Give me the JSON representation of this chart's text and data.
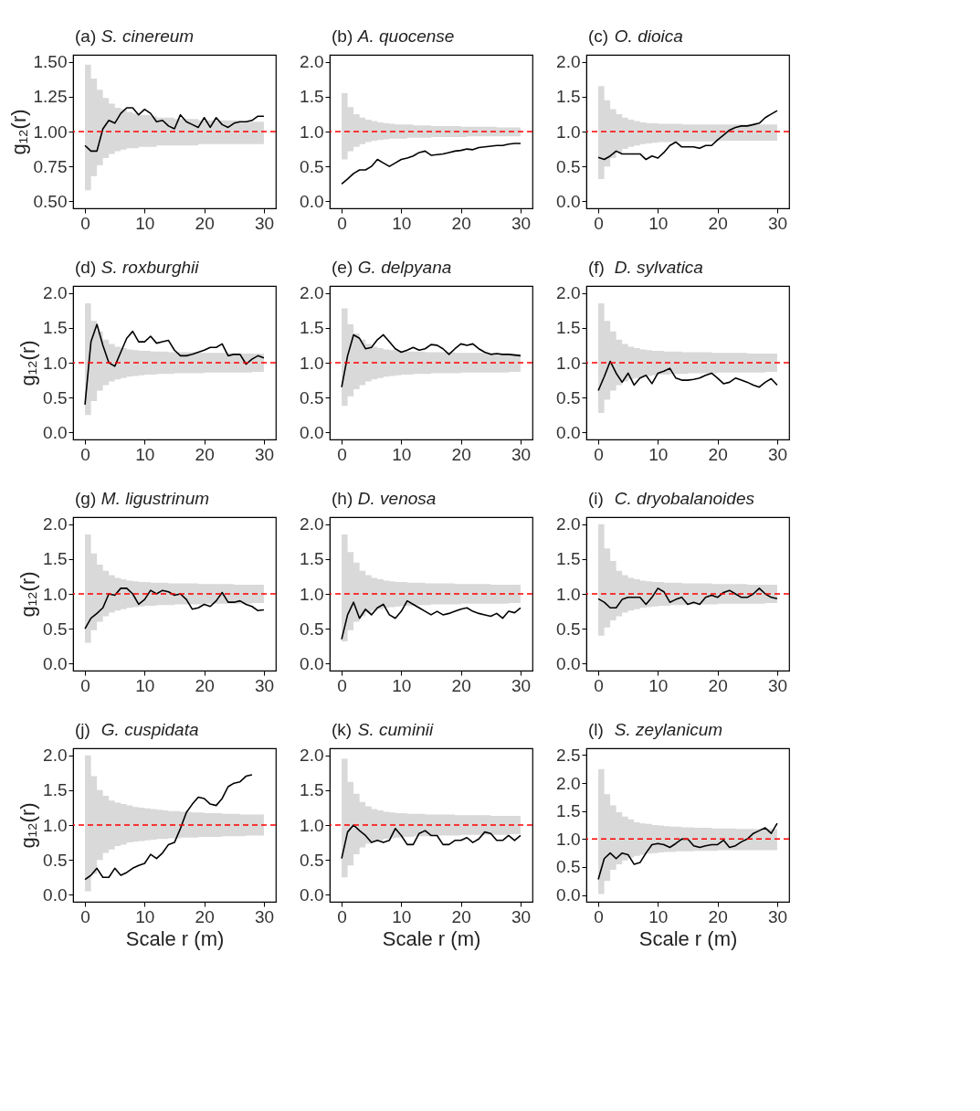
{
  "chart_data": [
    {
      "type": "line",
      "title": "(a) S. cinereum",
      "ylabel": "g₁₂(r)",
      "x": [
        0,
        1,
        2,
        3,
        4,
        5,
        6,
        7,
        8,
        9,
        10,
        11,
        12,
        13,
        14,
        15,
        16,
        17,
        18,
        19,
        20,
        21,
        22,
        23,
        24,
        25,
        26,
        27,
        28,
        29,
        30
      ],
      "xlim": [
        -2,
        32
      ],
      "xticks": [
        0,
        10,
        20,
        30
      ],
      "ylim": [
        0.45,
        1.55
      ],
      "yticks": [
        {
          "value": 0.5,
          "label": "0.50"
        },
        0.75,
        {
          "value": 1,
          "label": "1.00"
        },
        1.25,
        {
          "value": 1.5,
          "label": "1.50"
        }
      ],
      "ref_lines": [
        {
          "axis": "y",
          "value": 1,
          "color": "#ff0000",
          "line_style": "dashed"
        }
      ],
      "series": [
        {
          "color": "#000000",
          "values": [
            0.9,
            0.86,
            0.86,
            1.02,
            1.08,
            1.06,
            1.13,
            1.17,
            1.17,
            1.12,
            1.16,
            1.13,
            1.07,
            1.08,
            1.04,
            1.02,
            1.12,
            1.07,
            1.05,
            1.03,
            1.1,
            1.03,
            1.1,
            1.05,
            1.03,
            1.06,
            1.07,
            1.07,
            1.08,
            1.11,
            1.11
          ],
          "lower": [
            0.58,
            0.68,
            0.76,
            0.81,
            0.84,
            0.86,
            0.87,
            0.88,
            0.88,
            0.89,
            0.89,
            0.89,
            0.9,
            0.9,
            0.9,
            0.9,
            0.9,
            0.9,
            0.9,
            0.91,
            0.91,
            0.91,
            0.91,
            0.91,
            0.91,
            0.91,
            0.91,
            0.91,
            0.91,
            0.91,
            0.91
          ],
          "upper": [
            1.48,
            1.38,
            1.3,
            1.24,
            1.2,
            1.17,
            1.16,
            1.14,
            1.13,
            1.12,
            1.12,
            1.11,
            1.1,
            1.1,
            1.1,
            1.09,
            1.09,
            1.09,
            1.09,
            1.08,
            1.08,
            1.08,
            1.08,
            1.08,
            1.08,
            1.08,
            1.07,
            1.07,
            1.07,
            1.07,
            1.07
          ]
        }
      ]
    },
    {
      "type": "line",
      "title": "(b) A. quocense",
      "x": [
        0,
        1,
        2,
        3,
        4,
        5,
        6,
        7,
        8,
        9,
        10,
        11,
        12,
        13,
        14,
        15,
        16,
        17,
        18,
        19,
        20,
        21,
        22,
        23,
        24,
        25,
        26,
        27,
        28,
        29,
        30
      ],
      "xlim": [
        -2,
        32
      ],
      "xticks": [
        0,
        10,
        20,
        30
      ],
      "ylim": [
        -0.1,
        2.1
      ],
      "yticks": [
        {
          "value": 0,
          "label": "0.0"
        },
        0.5,
        {
          "value": 1,
          "label": "1.0"
        },
        1.5,
        {
          "value": 2,
          "label": "2.0"
        }
      ],
      "ref_lines": [
        {
          "axis": "y",
          "value": 1,
          "color": "#ff0000",
          "line_style": "dashed"
        }
      ],
      "series": [
        {
          "color": "#000000",
          "values": [
            0.25,
            0.32,
            0.4,
            0.45,
            0.45,
            0.5,
            0.6,
            0.55,
            0.5,
            0.55,
            0.6,
            0.62,
            0.65,
            0.7,
            0.72,
            0.66,
            0.67,
            0.68,
            0.7,
            0.72,
            0.73,
            0.75,
            0.74,
            0.77,
            0.78,
            0.79,
            0.8,
            0.8,
            0.82,
            0.83,
            0.83
          ],
          "lower": [
            0.6,
            0.72,
            0.78,
            0.82,
            0.85,
            0.87,
            0.88,
            0.89,
            0.9,
            0.9,
            0.9,
            0.91,
            0.91,
            0.91,
            0.91,
            0.92,
            0.92,
            0.92,
            0.92,
            0.92,
            0.92,
            0.93,
            0.93,
            0.93,
            0.93,
            0.93,
            0.93,
            0.93,
            0.93,
            0.93,
            0.93
          ],
          "upper": [
            1.55,
            1.35,
            1.25,
            1.2,
            1.17,
            1.15,
            1.13,
            1.12,
            1.11,
            1.1,
            1.1,
            1.1,
            1.09,
            1.09,
            1.09,
            1.08,
            1.08,
            1.08,
            1.08,
            1.08,
            1.07,
            1.07,
            1.07,
            1.07,
            1.07,
            1.07,
            1.06,
            1.06,
            1.06,
            1.06,
            1.06
          ]
        }
      ]
    },
    {
      "type": "line",
      "title": "(c) O. dioica",
      "x": [
        0,
        1,
        2,
        3,
        4,
        5,
        6,
        7,
        8,
        9,
        10,
        11,
        12,
        13,
        14,
        15,
        16,
        17,
        18,
        19,
        20,
        21,
        22,
        23,
        24,
        25,
        26,
        27,
        28,
        29,
        30
      ],
      "xlim": [
        -2,
        32
      ],
      "xticks": [
        0,
        10,
        20,
        30
      ],
      "ylim": [
        -0.1,
        2.1
      ],
      "yticks": [
        {
          "value": 0,
          "label": "0.0"
        },
        0.5,
        {
          "value": 1,
          "label": "1.0"
        },
        1.5,
        {
          "value": 2,
          "label": "2.0"
        }
      ],
      "ref_lines": [
        {
          "axis": "y",
          "value": 1,
          "color": "#ff0000",
          "line_style": "dashed"
        }
      ],
      "series": [
        {
          "color": "#000000",
          "values": [
            0.63,
            0.6,
            0.65,
            0.72,
            0.68,
            0.68,
            0.68,
            0.68,
            0.6,
            0.65,
            0.62,
            0.7,
            0.8,
            0.85,
            0.78,
            0.78,
            0.78,
            0.76,
            0.8,
            0.8,
            0.88,
            0.95,
            1.02,
            1.06,
            1.08,
            1.08,
            1.1,
            1.12,
            1.2,
            1.25,
            1.3
          ],
          "lower": [
            0.32,
            0.5,
            0.62,
            0.7,
            0.75,
            0.78,
            0.8,
            0.82,
            0.83,
            0.84,
            0.85,
            0.85,
            0.85,
            0.86,
            0.86,
            0.86,
            0.86,
            0.86,
            0.86,
            0.86,
            0.87,
            0.87,
            0.87,
            0.87,
            0.87,
            0.87,
            0.87,
            0.87,
            0.87,
            0.87,
            0.87
          ],
          "upper": [
            1.65,
            1.45,
            1.32,
            1.25,
            1.2,
            1.17,
            1.15,
            1.13,
            1.12,
            1.12,
            1.11,
            1.11,
            1.11,
            1.11,
            1.1,
            1.1,
            1.1,
            1.1,
            1.1,
            1.1,
            1.1,
            1.1,
            1.1,
            1.1,
            1.1,
            1.1,
            1.1,
            1.1,
            1.1,
            1.1,
            1.1
          ]
        }
      ]
    },
    {
      "type": "line",
      "title": "(d) S. roxburghii",
      "ylabel": "g₁₂(r)",
      "x": [
        0,
        1,
        2,
        3,
        4,
        5,
        6,
        7,
        8,
        9,
        10,
        11,
        12,
        13,
        14,
        15,
        16,
        17,
        18,
        19,
        20,
        21,
        22,
        23,
        24,
        25,
        26,
        27,
        28,
        29,
        30
      ],
      "xlim": [
        -2,
        32
      ],
      "xticks": [
        0,
        10,
        20,
        30
      ],
      "ylim": [
        -0.1,
        2.1
      ],
      "yticks": [
        {
          "value": 0,
          "label": "0.0"
        },
        0.5,
        {
          "value": 1,
          "label": "1.0"
        },
        1.5,
        {
          "value": 2,
          "label": "2.0"
        }
      ],
      "ref_lines": [
        {
          "axis": "y",
          "value": 1,
          "color": "#ff0000",
          "line_style": "dashed"
        }
      ],
      "series": [
        {
          "color": "#000000",
          "values": [
            0.4,
            1.3,
            1.55,
            1.25,
            1.0,
            0.95,
            1.15,
            1.35,
            1.45,
            1.3,
            1.3,
            1.38,
            1.28,
            1.3,
            1.32,
            1.18,
            1.1,
            1.1,
            1.12,
            1.15,
            1.18,
            1.22,
            1.22,
            1.27,
            1.1,
            1.12,
            1.12,
            0.98,
            1.05,
            1.1,
            1.07
          ],
          "lower": [
            0.25,
            0.45,
            0.6,
            0.68,
            0.73,
            0.76,
            0.78,
            0.8,
            0.81,
            0.82,
            0.83,
            0.83,
            0.84,
            0.84,
            0.84,
            0.85,
            0.85,
            0.85,
            0.85,
            0.85,
            0.86,
            0.86,
            0.86,
            0.86,
            0.86,
            0.86,
            0.86,
            0.86,
            0.87,
            0.87,
            0.87
          ],
          "upper": [
            1.85,
            1.6,
            1.45,
            1.33,
            1.27,
            1.23,
            1.21,
            1.19,
            1.18,
            1.17,
            1.17,
            1.16,
            1.16,
            1.16,
            1.15,
            1.15,
            1.15,
            1.15,
            1.15,
            1.14,
            1.14,
            1.14,
            1.14,
            1.14,
            1.14,
            1.13,
            1.13,
            1.13,
            1.13,
            1.13,
            1.13
          ]
        }
      ]
    },
    {
      "type": "line",
      "title": "(e) G. delpyana",
      "x": [
        0,
        1,
        2,
        3,
        4,
        5,
        6,
        7,
        8,
        9,
        10,
        11,
        12,
        13,
        14,
        15,
        16,
        17,
        18,
        19,
        20,
        21,
        22,
        23,
        24,
        25,
        26,
        27,
        28,
        29,
        30
      ],
      "xlim": [
        -2,
        32
      ],
      "xticks": [
        0,
        10,
        20,
        30
      ],
      "ylim": [
        -0.1,
        2.1
      ],
      "yticks": [
        {
          "value": 0,
          "label": "0.0"
        },
        0.5,
        {
          "value": 1,
          "label": "1.0"
        },
        1.5,
        {
          "value": 2,
          "label": "2.0"
        }
      ],
      "ref_lines": [
        {
          "axis": "y",
          "value": 1,
          "color": "#ff0000",
          "line_style": "dashed"
        }
      ],
      "series": [
        {
          "color": "#000000",
          "values": [
            0.65,
            1.1,
            1.4,
            1.35,
            1.2,
            1.22,
            1.33,
            1.4,
            1.3,
            1.2,
            1.15,
            1.18,
            1.22,
            1.18,
            1.2,
            1.26,
            1.25,
            1.2,
            1.12,
            1.2,
            1.27,
            1.25,
            1.27,
            1.2,
            1.15,
            1.12,
            1.13,
            1.12,
            1.12,
            1.11,
            1.1
          ],
          "lower": [
            0.38,
            0.52,
            0.62,
            0.68,
            0.73,
            0.76,
            0.78,
            0.8,
            0.81,
            0.82,
            0.83,
            0.83,
            0.84,
            0.84,
            0.84,
            0.85,
            0.85,
            0.85,
            0.85,
            0.85,
            0.86,
            0.86,
            0.86,
            0.86,
            0.86,
            0.86,
            0.86,
            0.86,
            0.87,
            0.87,
            0.87
          ],
          "upper": [
            1.78,
            1.55,
            1.42,
            1.33,
            1.27,
            1.23,
            1.21,
            1.19,
            1.18,
            1.17,
            1.17,
            1.16,
            1.16,
            1.16,
            1.15,
            1.15,
            1.15,
            1.15,
            1.15,
            1.14,
            1.14,
            1.14,
            1.14,
            1.14,
            1.14,
            1.13,
            1.13,
            1.13,
            1.13,
            1.13,
            1.13
          ]
        }
      ]
    },
    {
      "type": "line",
      "title": "(f) D. sylvatica",
      "x": [
        0,
        1,
        2,
        3,
        4,
        5,
        6,
        7,
        8,
        9,
        10,
        11,
        12,
        13,
        14,
        15,
        16,
        17,
        18,
        19,
        20,
        21,
        22,
        23,
        24,
        25,
        26,
        27,
        28,
        29,
        30
      ],
      "xlim": [
        -2,
        32
      ],
      "xticks": [
        0,
        10,
        20,
        30
      ],
      "ylim": [
        -0.1,
        2.1
      ],
      "yticks": [
        {
          "value": 0,
          "label": "0.0"
        },
        0.5,
        {
          "value": 1,
          "label": "1.0"
        },
        1.5,
        {
          "value": 2,
          "label": "2.0"
        }
      ],
      "ref_lines": [
        {
          "axis": "y",
          "value": 1,
          "color": "#ff0000",
          "line_style": "dashed"
        }
      ],
      "series": [
        {
          "color": "#000000",
          "values": [
            0.6,
            0.8,
            1.02,
            0.85,
            0.72,
            0.85,
            0.68,
            0.78,
            0.82,
            0.7,
            0.85,
            0.88,
            0.92,
            0.78,
            0.75,
            0.75,
            0.76,
            0.78,
            0.82,
            0.85,
            0.78,
            0.7,
            0.72,
            0.78,
            0.75,
            0.72,
            0.68,
            0.65,
            0.72,
            0.77,
            0.68
          ],
          "lower": [
            0.28,
            0.47,
            0.6,
            0.68,
            0.73,
            0.76,
            0.78,
            0.8,
            0.81,
            0.82,
            0.83,
            0.83,
            0.84,
            0.84,
            0.84,
            0.85,
            0.85,
            0.85,
            0.85,
            0.85,
            0.86,
            0.86,
            0.86,
            0.86,
            0.86,
            0.86,
            0.86,
            0.86,
            0.87,
            0.87,
            0.87
          ],
          "upper": [
            1.85,
            1.6,
            1.45,
            1.33,
            1.27,
            1.23,
            1.21,
            1.19,
            1.18,
            1.17,
            1.17,
            1.16,
            1.16,
            1.16,
            1.15,
            1.15,
            1.15,
            1.15,
            1.15,
            1.14,
            1.14,
            1.14,
            1.14,
            1.14,
            1.14,
            1.13,
            1.13,
            1.13,
            1.13,
            1.13,
            1.13
          ]
        }
      ]
    },
    {
      "type": "line",
      "title": "(g) M. ligustrinum",
      "ylabel": "g₁₂(r)",
      "x": [
        0,
        1,
        2,
        3,
        4,
        5,
        6,
        7,
        8,
        9,
        10,
        11,
        12,
        13,
        14,
        15,
        16,
        17,
        18,
        19,
        20,
        21,
        22,
        23,
        24,
        25,
        26,
        27,
        28,
        29,
        30
      ],
      "xlim": [
        -2,
        32
      ],
      "xticks": [
        0,
        10,
        20,
        30
      ],
      "ylim": [
        -0.1,
        2.1
      ],
      "yticks": [
        {
          "value": 0,
          "label": "0.0"
        },
        0.5,
        {
          "value": 1,
          "label": "1.0"
        },
        1.5,
        {
          "value": 2,
          "label": "2.0"
        }
      ],
      "ref_lines": [
        {
          "axis": "y",
          "value": 1,
          "color": "#ff0000",
          "line_style": "dashed"
        }
      ],
      "series": [
        {
          "color": "#000000",
          "values": [
            0.5,
            0.65,
            0.72,
            0.8,
            1.0,
            0.98,
            1.08,
            1.08,
            1.0,
            0.85,
            0.92,
            1.05,
            1.0,
            1.05,
            1.03,
            0.98,
            1.0,
            0.92,
            0.78,
            0.8,
            0.85,
            0.82,
            0.9,
            1.02,
            0.88,
            0.88,
            0.9,
            0.85,
            0.82,
            0.76,
            0.77
          ],
          "lower": [
            0.3,
            0.48,
            0.6,
            0.68,
            0.73,
            0.76,
            0.78,
            0.8,
            0.81,
            0.82,
            0.83,
            0.83,
            0.84,
            0.84,
            0.84,
            0.85,
            0.85,
            0.85,
            0.85,
            0.85,
            0.86,
            0.86,
            0.86,
            0.86,
            0.86,
            0.86,
            0.86,
            0.86,
            0.87,
            0.87,
            0.87
          ],
          "upper": [
            1.85,
            1.58,
            1.42,
            1.33,
            1.27,
            1.23,
            1.21,
            1.19,
            1.18,
            1.17,
            1.17,
            1.16,
            1.16,
            1.16,
            1.15,
            1.15,
            1.15,
            1.15,
            1.15,
            1.14,
            1.14,
            1.14,
            1.14,
            1.14,
            1.14,
            1.13,
            1.13,
            1.13,
            1.13,
            1.13,
            1.13
          ]
        }
      ]
    },
    {
      "type": "line",
      "title": "(h) D. venosa",
      "x": [
        0,
        1,
        2,
        3,
        4,
        5,
        6,
        7,
        8,
        9,
        10,
        11,
        12,
        13,
        14,
        15,
        16,
        17,
        18,
        19,
        20,
        21,
        22,
        23,
        24,
        25,
        26,
        27,
        28,
        29,
        30
      ],
      "xlim": [
        -2,
        32
      ],
      "xticks": [
        0,
        10,
        20,
        30
      ],
      "ylim": [
        -0.1,
        2.1
      ],
      "yticks": [
        {
          "value": 0,
          "label": "0.0"
        },
        0.5,
        {
          "value": 1,
          "label": "1.0"
        },
        1.5,
        {
          "value": 2,
          "label": "2.0"
        }
      ],
      "ref_lines": [
        {
          "axis": "y",
          "value": 1,
          "color": "#ff0000",
          "line_style": "dashed"
        }
      ],
      "series": [
        {
          "color": "#000000",
          "values": [
            0.35,
            0.7,
            0.88,
            0.65,
            0.78,
            0.7,
            0.8,
            0.85,
            0.7,
            0.65,
            0.75,
            0.9,
            0.85,
            0.8,
            0.75,
            0.7,
            0.75,
            0.7,
            0.72,
            0.75,
            0.78,
            0.8,
            0.75,
            0.72,
            0.7,
            0.68,
            0.72,
            0.65,
            0.75,
            0.73,
            0.8
          ],
          "lower": [
            0.32,
            0.48,
            0.6,
            0.68,
            0.73,
            0.76,
            0.78,
            0.8,
            0.81,
            0.82,
            0.83,
            0.83,
            0.84,
            0.84,
            0.84,
            0.85,
            0.85,
            0.85,
            0.85,
            0.85,
            0.86,
            0.86,
            0.86,
            0.86,
            0.86,
            0.86,
            0.86,
            0.86,
            0.87,
            0.87,
            0.87
          ],
          "upper": [
            1.85,
            1.6,
            1.45,
            1.33,
            1.27,
            1.23,
            1.21,
            1.19,
            1.18,
            1.17,
            1.17,
            1.16,
            1.16,
            1.16,
            1.15,
            1.15,
            1.15,
            1.15,
            1.15,
            1.14,
            1.14,
            1.14,
            1.14,
            1.14,
            1.14,
            1.13,
            1.13,
            1.13,
            1.13,
            1.13,
            1.13
          ]
        }
      ]
    },
    {
      "type": "line",
      "title": "(i) C. dryobalanoides",
      "x": [
        0,
        1,
        2,
        3,
        4,
        5,
        6,
        7,
        8,
        9,
        10,
        11,
        12,
        13,
        14,
        15,
        16,
        17,
        18,
        19,
        20,
        21,
        22,
        23,
        24,
        25,
        26,
        27,
        28,
        29,
        30
      ],
      "xlim": [
        -2,
        32
      ],
      "xticks": [
        0,
        10,
        20,
        30
      ],
      "ylim": [
        -0.1,
        2.1
      ],
      "yticks": [
        {
          "value": 0,
          "label": "0.0"
        },
        0.5,
        {
          "value": 1,
          "label": "1.0"
        },
        1.5,
        {
          "value": 2,
          "label": "2.0"
        }
      ],
      "ref_lines": [
        {
          "axis": "y",
          "value": 1,
          "color": "#ff0000",
          "line_style": "dashed"
        }
      ],
      "series": [
        {
          "color": "#000000",
          "values": [
            0.93,
            0.88,
            0.8,
            0.8,
            0.92,
            0.95,
            0.95,
            0.95,
            0.85,
            0.95,
            1.08,
            1.03,
            0.88,
            0.92,
            0.95,
            0.85,
            0.88,
            0.85,
            0.95,
            0.98,
            0.95,
            1.02,
            1.05,
            1.0,
            0.95,
            0.95,
            1.0,
            1.08,
            1.0,
            0.95,
            0.93
          ],
          "lower": [
            0.4,
            0.52,
            0.62,
            0.68,
            0.73,
            0.76,
            0.78,
            0.8,
            0.81,
            0.82,
            0.83,
            0.83,
            0.84,
            0.84,
            0.84,
            0.85,
            0.85,
            0.85,
            0.85,
            0.85,
            0.86,
            0.86,
            0.86,
            0.86,
            0.86,
            0.86,
            0.86,
            0.86,
            0.87,
            0.87,
            0.87
          ],
          "upper": [
            2.0,
            1.65,
            1.47,
            1.33,
            1.27,
            1.23,
            1.21,
            1.19,
            1.18,
            1.17,
            1.17,
            1.16,
            1.16,
            1.16,
            1.15,
            1.15,
            1.15,
            1.15,
            1.15,
            1.14,
            1.14,
            1.14,
            1.14,
            1.14,
            1.14,
            1.13,
            1.13,
            1.13,
            1.13,
            1.13,
            1.13
          ]
        }
      ]
    },
    {
      "type": "line",
      "title": "(j) G. cuspidata",
      "ylabel": "g₁₂(r)",
      "xlabel": "Scale r (m)",
      "x": [
        0,
        1,
        2,
        3,
        4,
        5,
        6,
        7,
        8,
        9,
        10,
        11,
        12,
        13,
        14,
        15,
        16,
        17,
        18,
        19,
        20,
        21,
        22,
        23,
        24,
        25,
        26,
        27,
        28,
        29,
        30
      ],
      "xlim": [
        -2,
        32
      ],
      "xticks": [
        0,
        10,
        20,
        30
      ],
      "ylim": [
        -0.1,
        2.1
      ],
      "yticks": [
        {
          "value": 0,
          "label": "0.0"
        },
        0.5,
        {
          "value": 1,
          "label": "1.0"
        },
        1.5,
        {
          "value": 2,
          "label": "2.0"
        }
      ],
      "ref_lines": [
        {
          "axis": "y",
          "value": 1,
          "color": "#ff0000",
          "line_style": "dashed"
        }
      ],
      "series": [
        {
          "color": "#000000",
          "values": [
            0.22,
            0.28,
            0.38,
            0.25,
            0.25,
            0.38,
            0.28,
            0.32,
            0.38,
            0.42,
            0.45,
            0.58,
            0.52,
            0.6,
            0.72,
            0.75,
            0.95,
            1.18,
            1.3,
            1.4,
            1.38,
            1.3,
            1.28,
            1.38,
            1.55,
            1.6,
            1.62,
            1.7,
            1.72,
            null,
            null
          ],
          "lower": [
            0.05,
            0.3,
            0.5,
            0.6,
            0.65,
            0.7,
            0.72,
            0.75,
            0.76,
            0.77,
            0.78,
            0.79,
            0.8,
            0.8,
            0.81,
            0.81,
            0.82,
            0.82,
            0.82,
            0.83,
            0.83,
            0.83,
            0.83,
            0.84,
            0.84,
            0.84,
            0.84,
            0.85,
            0.85,
            0.85,
            0.85
          ],
          "upper": [
            2.0,
            1.7,
            1.5,
            1.42,
            1.35,
            1.32,
            1.3,
            1.28,
            1.26,
            1.25,
            1.24,
            1.23,
            1.22,
            1.21,
            1.2,
            1.2,
            1.19,
            1.19,
            1.18,
            1.18,
            1.17,
            1.17,
            1.17,
            1.16,
            1.16,
            1.16,
            1.15,
            1.15,
            1.15,
            1.15,
            1.15
          ]
        }
      ]
    },
    {
      "type": "line",
      "title": "(k) S. cuminii",
      "xlabel": "Scale r (m)",
      "x": [
        0,
        1,
        2,
        3,
        4,
        5,
        6,
        7,
        8,
        9,
        10,
        11,
        12,
        13,
        14,
        15,
        16,
        17,
        18,
        19,
        20,
        21,
        22,
        23,
        24,
        25,
        26,
        27,
        28,
        29,
        30
      ],
      "xlim": [
        -2,
        32
      ],
      "xticks": [
        0,
        10,
        20,
        30
      ],
      "ylim": [
        -0.1,
        2.1
      ],
      "yticks": [
        {
          "value": 0,
          "label": "0.0"
        },
        0.5,
        {
          "value": 1,
          "label": "1.0"
        },
        1.5,
        {
          "value": 2,
          "label": "2.0"
        }
      ],
      "ref_lines": [
        {
          "axis": "y",
          "value": 1,
          "color": "#ff0000",
          "line_style": "dashed"
        }
      ],
      "series": [
        {
          "color": "#000000",
          "values": [
            0.52,
            0.9,
            1.0,
            0.92,
            0.85,
            0.75,
            0.78,
            0.75,
            0.78,
            0.95,
            0.85,
            0.72,
            0.72,
            0.88,
            0.92,
            0.85,
            0.85,
            0.72,
            0.72,
            0.78,
            0.78,
            0.82,
            0.75,
            0.8,
            0.9,
            0.88,
            0.78,
            0.78,
            0.85,
            0.78,
            0.85
          ],
          "lower": [
            0.25,
            0.42,
            0.58,
            0.68,
            0.73,
            0.76,
            0.78,
            0.8,
            0.81,
            0.82,
            0.83,
            0.83,
            0.84,
            0.84,
            0.84,
            0.85,
            0.85,
            0.85,
            0.85,
            0.85,
            0.86,
            0.86,
            0.86,
            0.86,
            0.86,
            0.86,
            0.86,
            0.86,
            0.87,
            0.87,
            0.87
          ],
          "upper": [
            1.95,
            1.62,
            1.45,
            1.33,
            1.27,
            1.23,
            1.21,
            1.19,
            1.18,
            1.17,
            1.17,
            1.16,
            1.16,
            1.16,
            1.15,
            1.15,
            1.15,
            1.15,
            1.15,
            1.14,
            1.14,
            1.14,
            1.14,
            1.14,
            1.14,
            1.13,
            1.13,
            1.13,
            1.13,
            1.13,
            1.13
          ]
        }
      ]
    },
    {
      "type": "line",
      "title": "(l) S. zeylanicum",
      "xlabel": "Scale r (m)",
      "x": [
        0,
        1,
        2,
        3,
        4,
        5,
        6,
        7,
        8,
        9,
        10,
        11,
        12,
        13,
        14,
        15,
        16,
        17,
        18,
        19,
        20,
        21,
        22,
        23,
        24,
        25,
        26,
        27,
        28,
        29,
        30
      ],
      "xlim": [
        -2,
        32
      ],
      "xticks": [
        0,
        10,
        20,
        30
      ],
      "ylim": [
        -0.12,
        2.62
      ],
      "yticks": [
        {
          "value": 0,
          "label": "0.0"
        },
        0.5,
        {
          "value": 1,
          "label": "1.0"
        },
        1.5,
        {
          "value": 2,
          "label": "2.0"
        },
        2.5
      ],
      "ref_lines": [
        {
          "axis": "y",
          "value": 1,
          "color": "#ff0000",
          "line_style": "dashed"
        }
      ],
      "series": [
        {
          "color": "#000000",
          "values": [
            0.28,
            0.65,
            0.75,
            0.65,
            0.75,
            0.72,
            0.55,
            0.58,
            0.75,
            0.9,
            0.92,
            0.9,
            0.85,
            0.92,
            1.0,
            1.0,
            0.88,
            0.85,
            0.88,
            0.9,
            0.9,
            0.98,
            0.85,
            0.88,
            0.95,
            1.0,
            1.1,
            1.15,
            1.2,
            1.1,
            1.28
          ],
          "lower": [
            0.02,
            0.25,
            0.45,
            0.55,
            0.62,
            0.67,
            0.7,
            0.72,
            0.74,
            0.75,
            0.76,
            0.77,
            0.77,
            0.78,
            0.78,
            0.78,
            0.79,
            0.79,
            0.79,
            0.79,
            0.8,
            0.8,
            0.8,
            0.8,
            0.8,
            0.8,
            0.8,
            0.8,
            0.8,
            0.8,
            0.8
          ],
          "upper": [
            2.25,
            1.8,
            1.6,
            1.48,
            1.4,
            1.35,
            1.3,
            1.28,
            1.27,
            1.25,
            1.24,
            1.23,
            1.22,
            1.22,
            1.21,
            1.21,
            1.2,
            1.2,
            1.2,
            1.19,
            1.19,
            1.19,
            1.19,
            1.18,
            1.18,
            1.18,
            1.18,
            1.18,
            1.18,
            1.18,
            1.18
          ]
        }
      ]
    }
  ]
}
